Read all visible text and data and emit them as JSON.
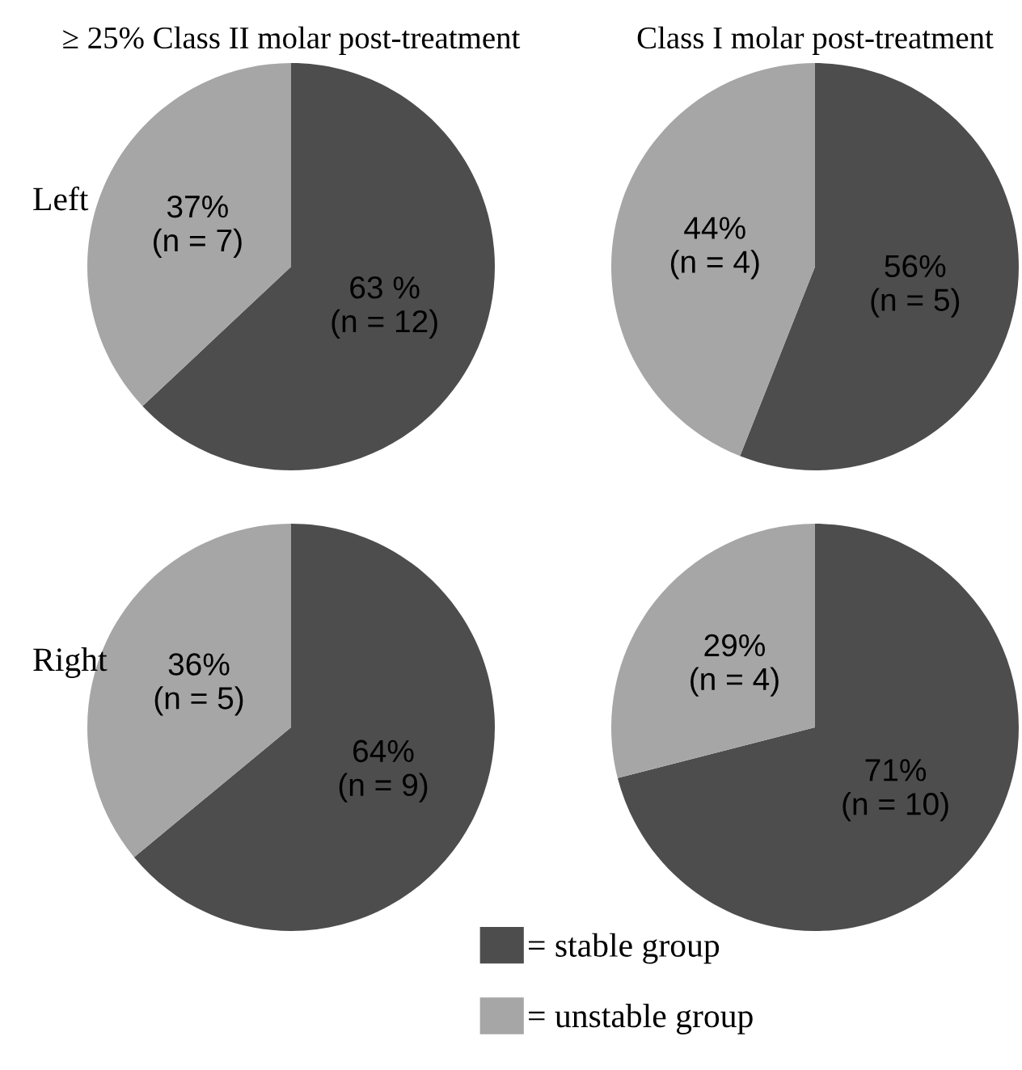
{
  "chart_data": [
    {
      "type": "pie",
      "title": "≥ 25% Class II molar post-treatment",
      "ylabel": "Left",
      "categories": [
        "= stable group",
        "= unstable group"
      ],
      "values": [
        63,
        37
      ],
      "colors": [
        "#4d4d4d",
        "#a6a6a6"
      ],
      "value_labels": [
        "63 %\n(n = 12)",
        "37%\n(n = 7)"
      ],
      "legend": "bottom"
    },
    {
      "type": "pie",
      "title": "Class I molar post-treatment",
      "values": [
        56,
        44
      ],
      "colors": [
        "#4d4d4d",
        "#a6a6a6"
      ],
      "value_labels": [
        "56%\n(n = 5)",
        "44%\n(n = 4)"
      ]
    },
    {
      "type": "pie",
      "ylabel": "Right",
      "values": [
        64,
        36
      ],
      "colors": [
        "#4d4d4d",
        "#a6a6a6"
      ],
      "value_labels": [
        "64%\n(n = 9)",
        "36%\n(n = 5)"
      ]
    },
    {
      "type": "pie",
      "values": [
        71,
        29
      ],
      "colors": [
        "#4d4d4d",
        "#a6a6a6"
      ],
      "value_labels": [
        "71%\n(n = 10)",
        "29%\n(n = 4)"
      ]
    }
  ]
}
